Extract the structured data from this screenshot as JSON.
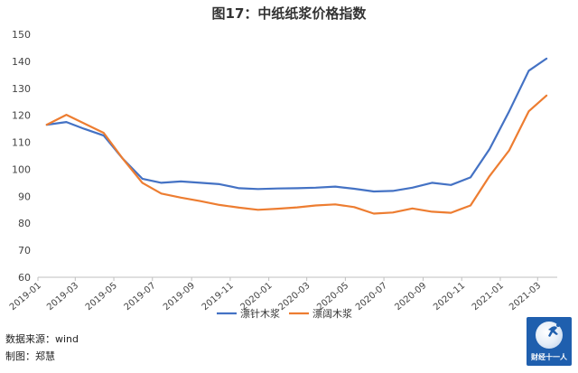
{
  "title": "图17：中纸纸浆价格指数",
  "source": "数据来源：wind",
  "author": "制图：郑慧",
  "brand": "财经十一人",
  "chart_data": {
    "type": "line",
    "title": "图17：中纸纸浆价格指数",
    "ylim": [
      60,
      150
    ],
    "yticks": [
      60,
      70,
      80,
      90,
      100,
      110,
      120,
      130,
      140,
      150
    ],
    "xlim": [
      "2019-01",
      "2021-04"
    ],
    "xticks": [
      "2019-01",
      "2019-03",
      "2019-05",
      "2019-07",
      "2019-09",
      "2019-11",
      "2020-01",
      "2020-03",
      "2020-05",
      "2020-07",
      "2020-09",
      "2020-11",
      "2021-01",
      "2021-03"
    ],
    "legend_position": "bottom",
    "grid": false,
    "series": [
      {
        "name": "漂针木浆",
        "color": "#4472c4",
        "points": [
          [
            "2019-01-15",
            116.5
          ],
          [
            "2019-02-15",
            117.5
          ],
          [
            "2019-03-15",
            115.0
          ],
          [
            "2019-04-15",
            112.5
          ],
          [
            "2019-05-15",
            104.0
          ],
          [
            "2019-06-15",
            96.5
          ],
          [
            "2019-07-15",
            95.0
          ],
          [
            "2019-08-15",
            95.5
          ],
          [
            "2019-09-15",
            95.0
          ],
          [
            "2019-10-15",
            94.5
          ],
          [
            "2019-11-15",
            93.0
          ],
          [
            "2019-12-15",
            92.7
          ],
          [
            "2020-01-15",
            92.9
          ],
          [
            "2020-02-15",
            93.0
          ],
          [
            "2020-03-15",
            93.2
          ],
          [
            "2020-04-15",
            93.6
          ],
          [
            "2020-05-15",
            92.8
          ],
          [
            "2020-06-15",
            91.8
          ],
          [
            "2020-07-15",
            92.0
          ],
          [
            "2020-08-15",
            93.2
          ],
          [
            "2020-09-15",
            95.0
          ],
          [
            "2020-10-15",
            94.2
          ],
          [
            "2020-11-15",
            97.0
          ],
          [
            "2020-12-15",
            107.5
          ],
          [
            "2021-01-15",
            121.5
          ],
          [
            "2021-02-15",
            136.5
          ],
          [
            "2021-03-15",
            141.0
          ]
        ]
      },
      {
        "name": "漂阔木浆",
        "color": "#ed7d31",
        "points": [
          [
            "2019-01-15",
            116.5
          ],
          [
            "2019-02-15",
            120.2
          ],
          [
            "2019-03-15",
            117.0
          ],
          [
            "2019-04-15",
            113.5
          ],
          [
            "2019-05-15",
            104.0
          ],
          [
            "2019-06-15",
            95.0
          ],
          [
            "2019-07-15",
            91.0
          ],
          [
            "2019-08-15",
            89.5
          ],
          [
            "2019-09-15",
            88.2
          ],
          [
            "2019-10-15",
            86.8
          ],
          [
            "2019-11-15",
            85.8
          ],
          [
            "2019-12-15",
            85.0
          ],
          [
            "2020-01-15",
            85.4
          ],
          [
            "2020-02-15",
            85.9
          ],
          [
            "2020-03-15",
            86.6
          ],
          [
            "2020-04-15",
            87.0
          ],
          [
            "2020-05-15",
            86.0
          ],
          [
            "2020-06-15",
            83.6
          ],
          [
            "2020-07-15",
            84.0
          ],
          [
            "2020-08-15",
            85.5
          ],
          [
            "2020-09-15",
            84.3
          ],
          [
            "2020-10-15",
            83.9
          ],
          [
            "2020-11-15",
            86.6
          ],
          [
            "2020-12-15",
            97.5
          ],
          [
            "2021-01-15",
            107.0
          ],
          [
            "2021-02-15",
            121.5
          ],
          [
            "2021-03-15",
            127.3
          ]
        ]
      }
    ]
  }
}
